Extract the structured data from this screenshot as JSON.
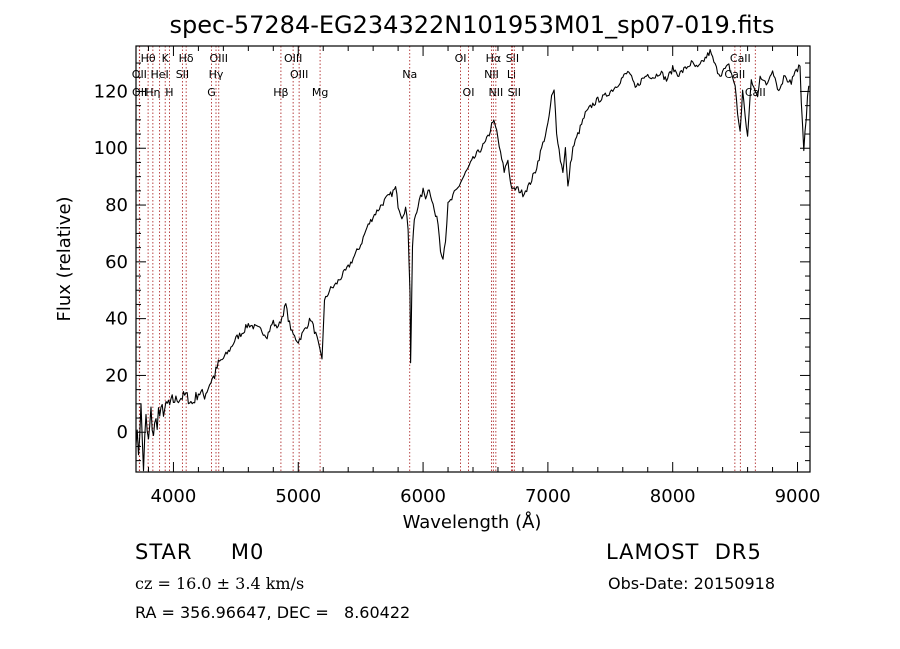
{
  "chart_data": {
    "type": "line",
    "title": "spec-57284-EG234322N101953M01_sp07-019.fits",
    "xlabel": "Wavelength (Å)",
    "ylabel": "Flux (relative)",
    "xlim": [
      3700,
      9100
    ],
    "ylim": [
      -14,
      136
    ],
    "xticks": [
      4000,
      5000,
      6000,
      7000,
      8000,
      9000
    ],
    "yticks": [
      0,
      20,
      40,
      60,
      80,
      100,
      120
    ],
    "grid": false,
    "series": [
      {
        "x": [
          3700,
          3720,
          3740,
          3760,
          3780,
          3800,
          3820,
          3840,
          3860,
          3880,
          3900,
          3920,
          3940,
          3960,
          3980,
          4000,
          4050,
          4100,
          4150,
          4200,
          4250,
          4300,
          4330,
          4360,
          4400,
          4450,
          4500,
          4550,
          4600,
          4650,
          4700,
          4750,
          4800,
          4820,
          4850,
          4880,
          4900,
          4920,
          4950,
          4980,
          5000,
          5050,
          5100,
          5150,
          5170,
          5190,
          5210,
          5250,
          5300,
          5350,
          5400,
          5450,
          5500,
          5550,
          5600,
          5650,
          5700,
          5750,
          5780,
          5800,
          5830,
          5860,
          5880,
          5895,
          5900,
          5905,
          5915,
          5930,
          5960,
          6000,
          6020,
          6050,
          6080,
          6100,
          6120,
          6140,
          6160,
          6180,
          6200,
          6230,
          6250,
          6280,
          6300,
          6350,
          6400,
          6450,
          6500,
          6530,
          6560,
          6575,
          6590,
          6620,
          6650,
          6680,
          6700,
          6720,
          6750,
          6800,
          6850,
          6900,
          6950,
          7000,
          7030,
          7050,
          7070,
          7100,
          7120,
          7140,
          7160,
          7180,
          7200,
          7250,
          7300,
          7350,
          7400,
          7450,
          7500,
          7550,
          7600,
          7650,
          7700,
          7750,
          7800,
          7850,
          7900,
          7950,
          8000,
          8050,
          8100,
          8150,
          8200,
          8250,
          8300,
          8350,
          8380,
          8400,
          8450,
          8480,
          8500,
          8520,
          8540,
          8560,
          8600,
          8630,
          8660,
          8680,
          8700,
          8750,
          8800,
          8850,
          8900,
          8950,
          9000,
          9020,
          9050,
          9070,
          9090
        ],
        "y": [
          0,
          -6,
          8,
          -12,
          4,
          -4,
          6,
          0,
          3,
          7,
          5,
          9,
          7,
          10,
          8,
          11,
          12,
          13,
          10,
          14,
          13,
          18,
          20,
          24,
          26,
          29,
          33,
          35,
          38,
          37,
          36,
          34,
          39,
          37,
          38,
          42,
          45,
          40,
          35,
          33,
          32,
          36,
          40,
          33,
          29,
          26,
          46,
          50,
          52,
          55,
          58,
          62,
          66,
          72,
          76,
          79,
          82,
          84,
          86,
          80,
          76,
          79,
          72,
          50,
          25,
          35,
          65,
          75,
          80,
          85,
          83,
          86,
          80,
          76,
          74,
          64,
          62,
          68,
          80,
          82,
          84,
          86,
          88,
          92,
          96,
          99,
          102,
          105,
          110,
          108,
          106,
          98,
          92,
          96,
          88,
          85,
          86,
          84,
          87,
          92,
          100,
          108,
          118,
          120,
          106,
          96,
          92,
          100,
          86,
          94,
          100,
          106,
          112,
          115,
          117,
          118,
          120,
          122,
          125,
          127,
          121,
          124,
          126,
          125,
          127,
          124,
          128,
          126,
          128,
          130,
          128,
          131,
          134,
          128,
          126,
          127,
          129,
          125,
          122,
          112,
          106,
          120,
          104,
          124,
          120,
          118,
          126,
          122,
          128,
          120,
          126,
          124,
          127,
          128,
          98,
          110,
          122
        ]
      }
    ],
    "line_markers": [
      {
        "label": "Hθ",
        "wl": 3797,
        "row": 0
      },
      {
        "label": "OII",
        "wl": 3727,
        "row": 1
      },
      {
        "label": "OII",
        "wl": 3729,
        "row": 2
      },
      {
        "label": "Hη",
        "wl": 3835,
        "row": 2
      },
      {
        "label": "K",
        "wl": 3934,
        "row": 0
      },
      {
        "label": "HeI",
        "wl": 3889,
        "row": 1
      },
      {
        "label": "H",
        "wl": 3968,
        "row": 2
      },
      {
        "label": "Hδ",
        "wl": 4102,
        "row": 0
      },
      {
        "label": "SII",
        "wl": 4072,
        "row": 1
      },
      {
        "label": "OIII",
        "wl": 4363,
        "row": 0
      },
      {
        "label": "Hγ",
        "wl": 4341,
        "row": 1
      },
      {
        "label": "G",
        "wl": 4305,
        "row": 2
      },
      {
        "label": "Hβ",
        "wl": 4861,
        "row": 2
      },
      {
        "label": "OIII",
        "wl": 4959,
        "row": 0
      },
      {
        "label": "OIII",
        "wl": 5007,
        "row": 1
      },
      {
        "label": "Mg",
        "wl": 5175,
        "row": 2
      },
      {
        "label": "Na",
        "wl": 5893,
        "row": 1
      },
      {
        "label": "OI",
        "wl": 6300,
        "row": 0
      },
      {
        "label": "OI",
        "wl": 6364,
        "row": 2
      },
      {
        "label": "Hα",
        "wl": 6563,
        "row": 0
      },
      {
        "label": "NII",
        "wl": 6548,
        "row": 1
      },
      {
        "label": "NII",
        "wl": 6583,
        "row": 2
      },
      {
        "label": "SII",
        "wl": 6716,
        "row": 0
      },
      {
        "label": "Li",
        "wl": 6708,
        "row": 1
      },
      {
        "label": "SII",
        "wl": 6731,
        "row": 2
      },
      {
        "label": "CaII",
        "wl": 8542,
        "row": 0
      },
      {
        "label": "CaII",
        "wl": 8498,
        "row": 1
      },
      {
        "label": "CaII",
        "wl": 8662,
        "row": 2
      }
    ]
  },
  "info": {
    "class": "STAR     M0",
    "survey": "LAMOST  DR5",
    "cz": "cz = 16.0 ± 3.4 km/s",
    "obs_date": "Obs-Date: 20150918",
    "coords": "RA = 356.96647, DEC =   8.60422"
  },
  "colors": {
    "line": "#000000",
    "markers": "#b03030",
    "axes": "#000000"
  }
}
